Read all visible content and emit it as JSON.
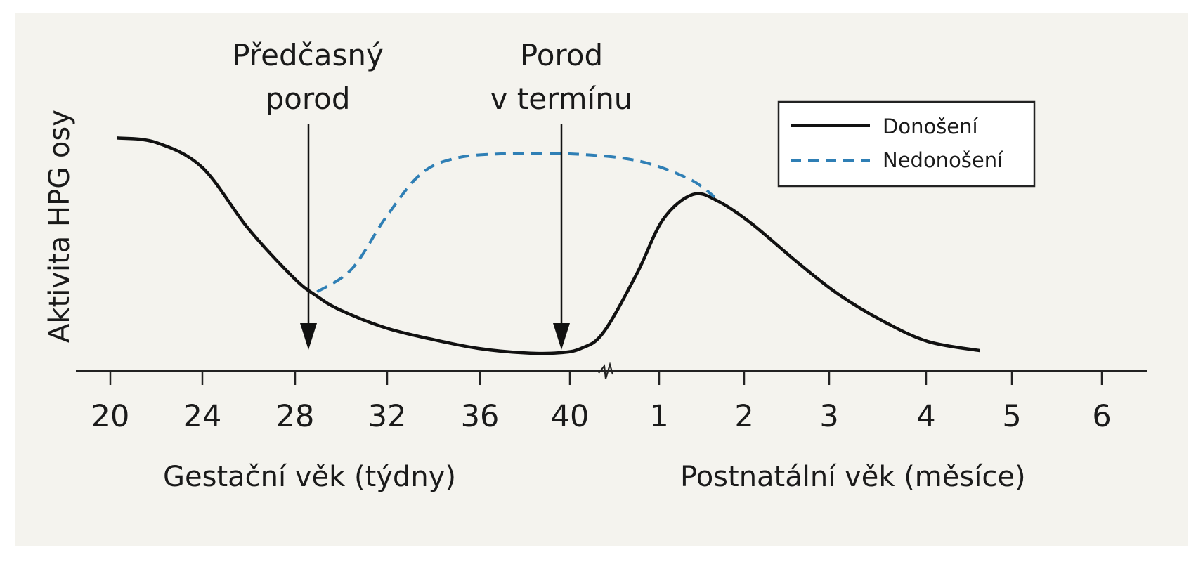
{
  "chart_data": {
    "type": "line",
    "ylabel": "Aktivita HPG osy",
    "xlabel_left": "Gestační věk (týdny)",
    "xlabel_right": "Postnatální věk (měsíce)",
    "y_ticks_shown": false,
    "grid": false,
    "legend_position": "top-right",
    "axis_break_between": [
      "40",
      "1"
    ],
    "x_ticks": [
      "20",
      "24",
      "28",
      "32",
      "36",
      "40",
      "1",
      "2",
      "3",
      "4",
      "5",
      "6"
    ],
    "series": [
      {
        "name": "Donošení",
        "style": "solid",
        "color": "#111111",
        "points": [
          {
            "x": 20.3,
            "y": 0.98
          },
          {
            "x": 22,
            "y": 0.96
          },
          {
            "x": 24,
            "y": 0.85
          },
          {
            "x": 26,
            "y": 0.58
          },
          {
            "x": 28,
            "y": 0.36
          },
          {
            "x": 29,
            "y": 0.28
          },
          {
            "x": 30,
            "y": 0.22
          },
          {
            "x": 32,
            "y": 0.14
          },
          {
            "x": 34,
            "y": 0.09
          },
          {
            "x": 36,
            "y": 0.05
          },
          {
            "x": 38,
            "y": 0.03
          },
          {
            "x": 39.5,
            "y": 0.03
          },
          {
            "x": 40.5,
            "y": 0.05
          },
          {
            "x": 41.5,
            "y": 0.12
          },
          {
            "x": 43,
            "y": 0.38
          },
          {
            "x": 44.2,
            "y": 0.62
          },
          {
            "x": 45.7,
            "y": 0.73
          },
          {
            "x": 47,
            "y": 0.7
          },
          {
            "x": 48.7,
            "y": 0.6
          },
          {
            "x": 51,
            "y": 0.43
          },
          {
            "x": 53,
            "y": 0.29
          },
          {
            "x": 55,
            "y": 0.17
          },
          {
            "x": 57,
            "y": 0.08
          },
          {
            "x": 59.6,
            "y": 0.04
          }
        ]
      },
      {
        "name": "Nedonošení",
        "style": "dashed",
        "color": "#2f7fb5",
        "points": [
          {
            "x": 29,
            "y": 0.3
          },
          {
            "x": 30.5,
            "y": 0.4
          },
          {
            "x": 32,
            "y": 0.63
          },
          {
            "x": 33.5,
            "y": 0.82
          },
          {
            "x": 35,
            "y": 0.89
          },
          {
            "x": 37,
            "y": 0.91
          },
          {
            "x": 40,
            "y": 0.91
          },
          {
            "x": 43,
            "y": 0.88
          },
          {
            "x": 45.5,
            "y": 0.8
          },
          {
            "x": 46.8,
            "y": 0.72
          }
        ]
      }
    ],
    "annotations": [
      {
        "lines": [
          "Předčasný",
          "porod"
        ],
        "x": 28.6
      },
      {
        "lines": [
          "Porod",
          "v termínu"
        ],
        "x": 39.7
      }
    ]
  }
}
